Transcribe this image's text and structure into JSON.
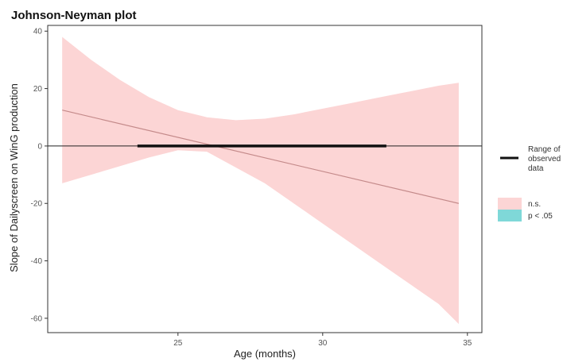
{
  "chart_data": {
    "type": "area",
    "title": "Johnson-Neyman plot",
    "xlabel": "Age (months)",
    "ylabel": "Slope of Dailyscreen on WinG production",
    "xlim": [
      20.5,
      35.5
    ],
    "ylim": [
      -65,
      42
    ],
    "x_ticks": [
      25,
      30,
      35
    ],
    "y_ticks": [
      -60,
      -40,
      -20,
      0,
      20,
      40
    ],
    "grid": false,
    "legend": "right",
    "slope_line": {
      "x": [
        21,
        34.7
      ],
      "y": [
        12.5,
        -20
      ]
    },
    "confidence_band": {
      "x": [
        21,
        22,
        23,
        24,
        25,
        26,
        27,
        28,
        29,
        30,
        31,
        32,
        33,
        34,
        34.7
      ],
      "upper": [
        38,
        30,
        23,
        17,
        12.5,
        10,
        9,
        9.5,
        11,
        13,
        15,
        17,
        19,
        21,
        22
      ],
      "lower": [
        -13,
        -10,
        -7,
        -4,
        -1.5,
        -2,
        -7.5,
        -13,
        -20,
        -27,
        -34,
        -41,
        -48,
        -55,
        -62
      ]
    },
    "observed_range": {
      "x": [
        23.6,
        32.2
      ],
      "y": 0
    },
    "zero_line_y": 0,
    "colors": {
      "ns_fill": "#fcd5d5",
      "sig_fill": "#7fd8d8",
      "slope_line": "#c48a8a",
      "range_line": "#111111",
      "zero_line": "#222222"
    }
  },
  "legend": {
    "range_label_lines": [
      "Range of",
      "observed",
      "data"
    ],
    "ns_label": "n.s.",
    "sig_label": "p < .05"
  }
}
